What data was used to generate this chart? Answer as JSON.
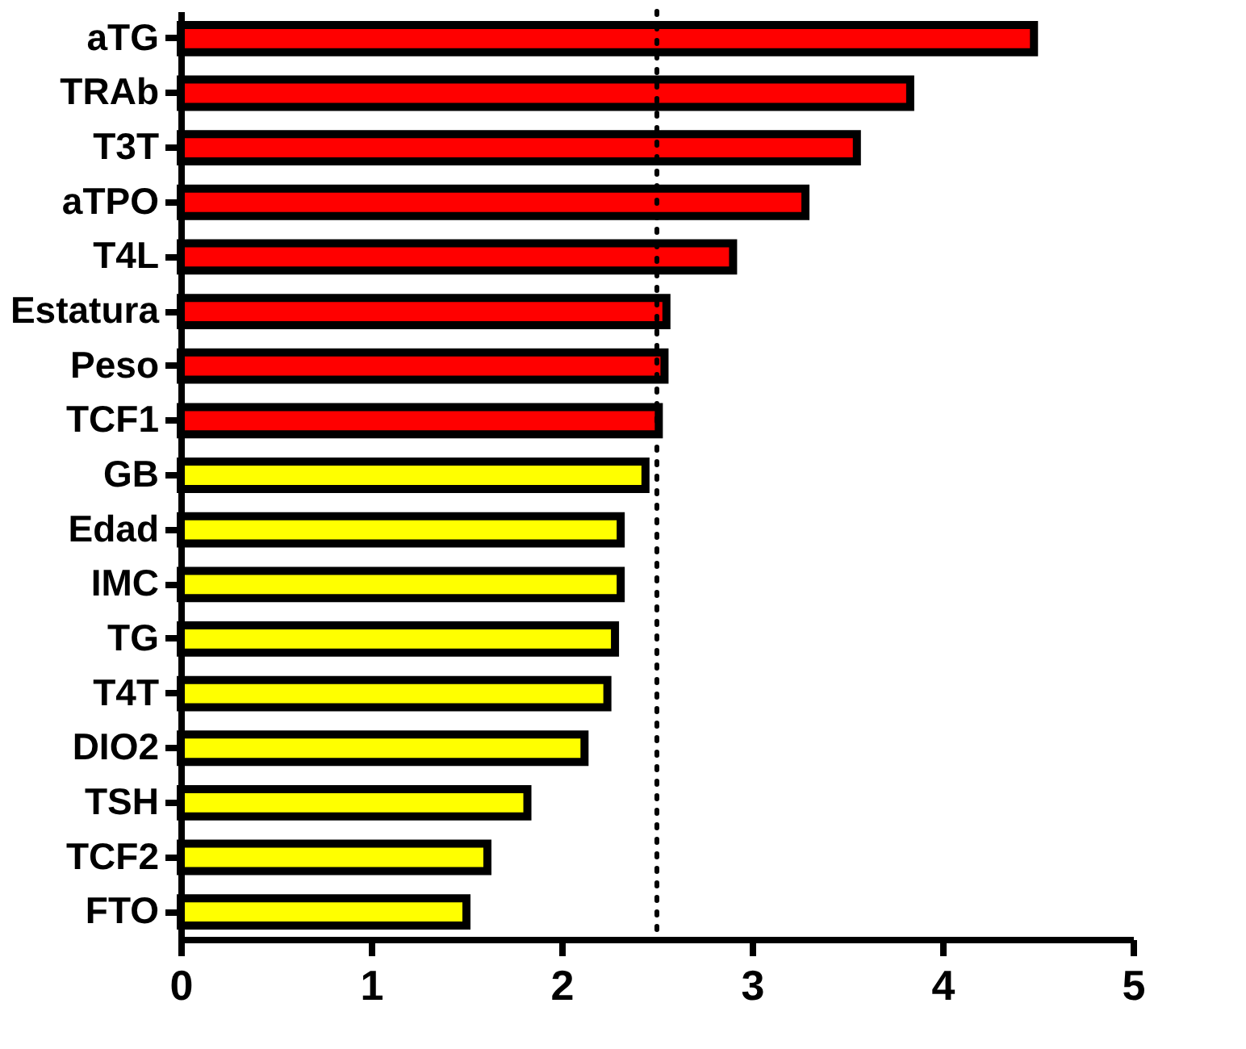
{
  "chart_data": {
    "type": "bar",
    "orientation": "horizontal",
    "categories": [
      "aTG",
      "TRAb",
      "T3T",
      "aTPO",
      "T4L",
      "Estatura",
      "Peso",
      "TCF1",
      "GB",
      "Edad",
      "IMC",
      "TG",
      "T4T",
      "DIO2",
      "TSH",
      "TCF2",
      "FTO"
    ],
    "values": [
      4.48,
      3.83,
      3.55,
      3.28,
      2.9,
      2.55,
      2.54,
      2.51,
      2.44,
      2.31,
      2.31,
      2.28,
      2.24,
      2.12,
      1.82,
      1.61,
      1.5
    ],
    "colors": [
      "#ff0000",
      "#ff0000",
      "#ff0000",
      "#ff0000",
      "#ff0000",
      "#ff0000",
      "#ff0000",
      "#ff0000",
      "#ffff00",
      "#ffff00",
      "#ffff00",
      "#ffff00",
      "#ffff00",
      "#ffff00",
      "#ffff00",
      "#ffff00",
      "#ffff00"
    ],
    "xlim": [
      0,
      5
    ],
    "xticks": [
      0,
      1,
      2,
      3,
      4,
      5
    ],
    "ref_lines": [
      {
        "axis": "x",
        "value": 2.5,
        "line_style": "dotted"
      }
    ],
    "grid": false
  }
}
